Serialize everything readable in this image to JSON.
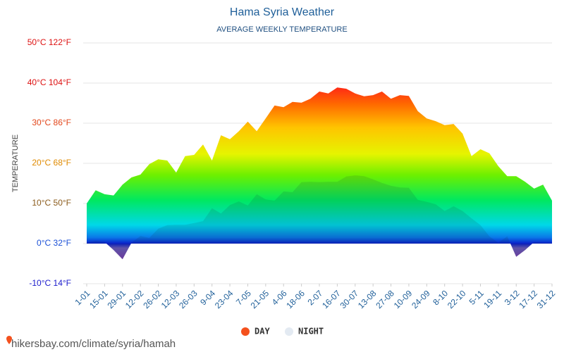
{
  "chart_data": {
    "type": "area",
    "title": "Hama Syria Weather",
    "subtitle": "AVERAGE WEEKLY TEMPERATURE",
    "y_label": "TEMPERATURE",
    "footer": "hikersbay.com/climate/syria/hamah",
    "categories": [
      "1-01",
      null,
      "15-01",
      null,
      "29-01",
      null,
      "12-02",
      null,
      "26-02",
      null,
      "12-03",
      null,
      "26-03",
      null,
      "9-04",
      null,
      "23-04",
      null,
      "7-05",
      null,
      "21-05",
      null,
      "4-06",
      null,
      "18-06",
      null,
      "2-07",
      null,
      "16-07",
      null,
      "30-07",
      null,
      "13-08",
      null,
      "27-08",
      null,
      "10-09",
      null,
      "24-09",
      null,
      "8-10",
      null,
      "22-10",
      null,
      "5-11",
      null,
      "19-11",
      null,
      "3-12",
      null,
      "17-12",
      null,
      "31-12"
    ],
    "series": [
      {
        "name": "DAY",
        "color": "#f4511e",
        "values": [
          10,
          13.3,
          12.3,
          12,
          14.7,
          16.5,
          17.2,
          19.8,
          21,
          20.7,
          17.7,
          21.8,
          22.1,
          24.7,
          20.7,
          27,
          26,
          28,
          30.4,
          28,
          31.2,
          34.4,
          34,
          35.3,
          35.1,
          36.1,
          37.9,
          37.4,
          38.9,
          38.6,
          37.4,
          36.7,
          37,
          37.9,
          36.1,
          37,
          36.8,
          33,
          31.2,
          30.5,
          29.5,
          29.8,
          27.4,
          21.8,
          23.5,
          22.5,
          19.3,
          16.8,
          16.8,
          15.4,
          13.7,
          14.7,
          10.7
        ]
      },
      {
        "name": "NIGHT",
        "color": "#e3eaf2",
        "values": [
          0.2,
          0.7,
          0.4,
          -1.6,
          -3.9,
          0.2,
          1.9,
          1.4,
          3.7,
          4.6,
          4.7,
          4.7,
          5.1,
          5.6,
          8.8,
          7.5,
          9.6,
          10.5,
          9.5,
          12.3,
          11,
          10.7,
          13,
          12.8,
          15.3,
          15.4,
          15.3,
          15.4,
          15.4,
          16.7,
          17,
          16.8,
          16,
          15.1,
          14.4,
          14,
          13.9,
          10.9,
          10.4,
          9.8,
          8.1,
          9.3,
          8.1,
          6.3,
          4.6,
          1.8,
          0.2,
          1.8,
          -3.3,
          -1.6,
          0.4,
          0.2,
          0.2
        ]
      }
    ],
    "ylim": [
      -10,
      50
    ],
    "yticks": [
      {
        "value": -10,
        "label": "-10°C 14°F"
      },
      {
        "value": 0,
        "label": "0°C 32°F"
      },
      {
        "value": 10,
        "label": "10°C 50°F"
      },
      {
        "value": 20,
        "label": "20°C 68°F"
      },
      {
        "value": 30,
        "label": "30°C 86°F"
      },
      {
        "value": 40,
        "label": "40°C 104°F"
      },
      {
        "value": 50,
        "label": "50°C 122°F"
      }
    ],
    "ytick_colors": [
      "#1a1acc",
      "#1a4fd6",
      "#8a5a1a",
      "#e08a00",
      "#e2461a",
      "#dd1111",
      "#dd1111"
    ],
    "grid": true
  }
}
